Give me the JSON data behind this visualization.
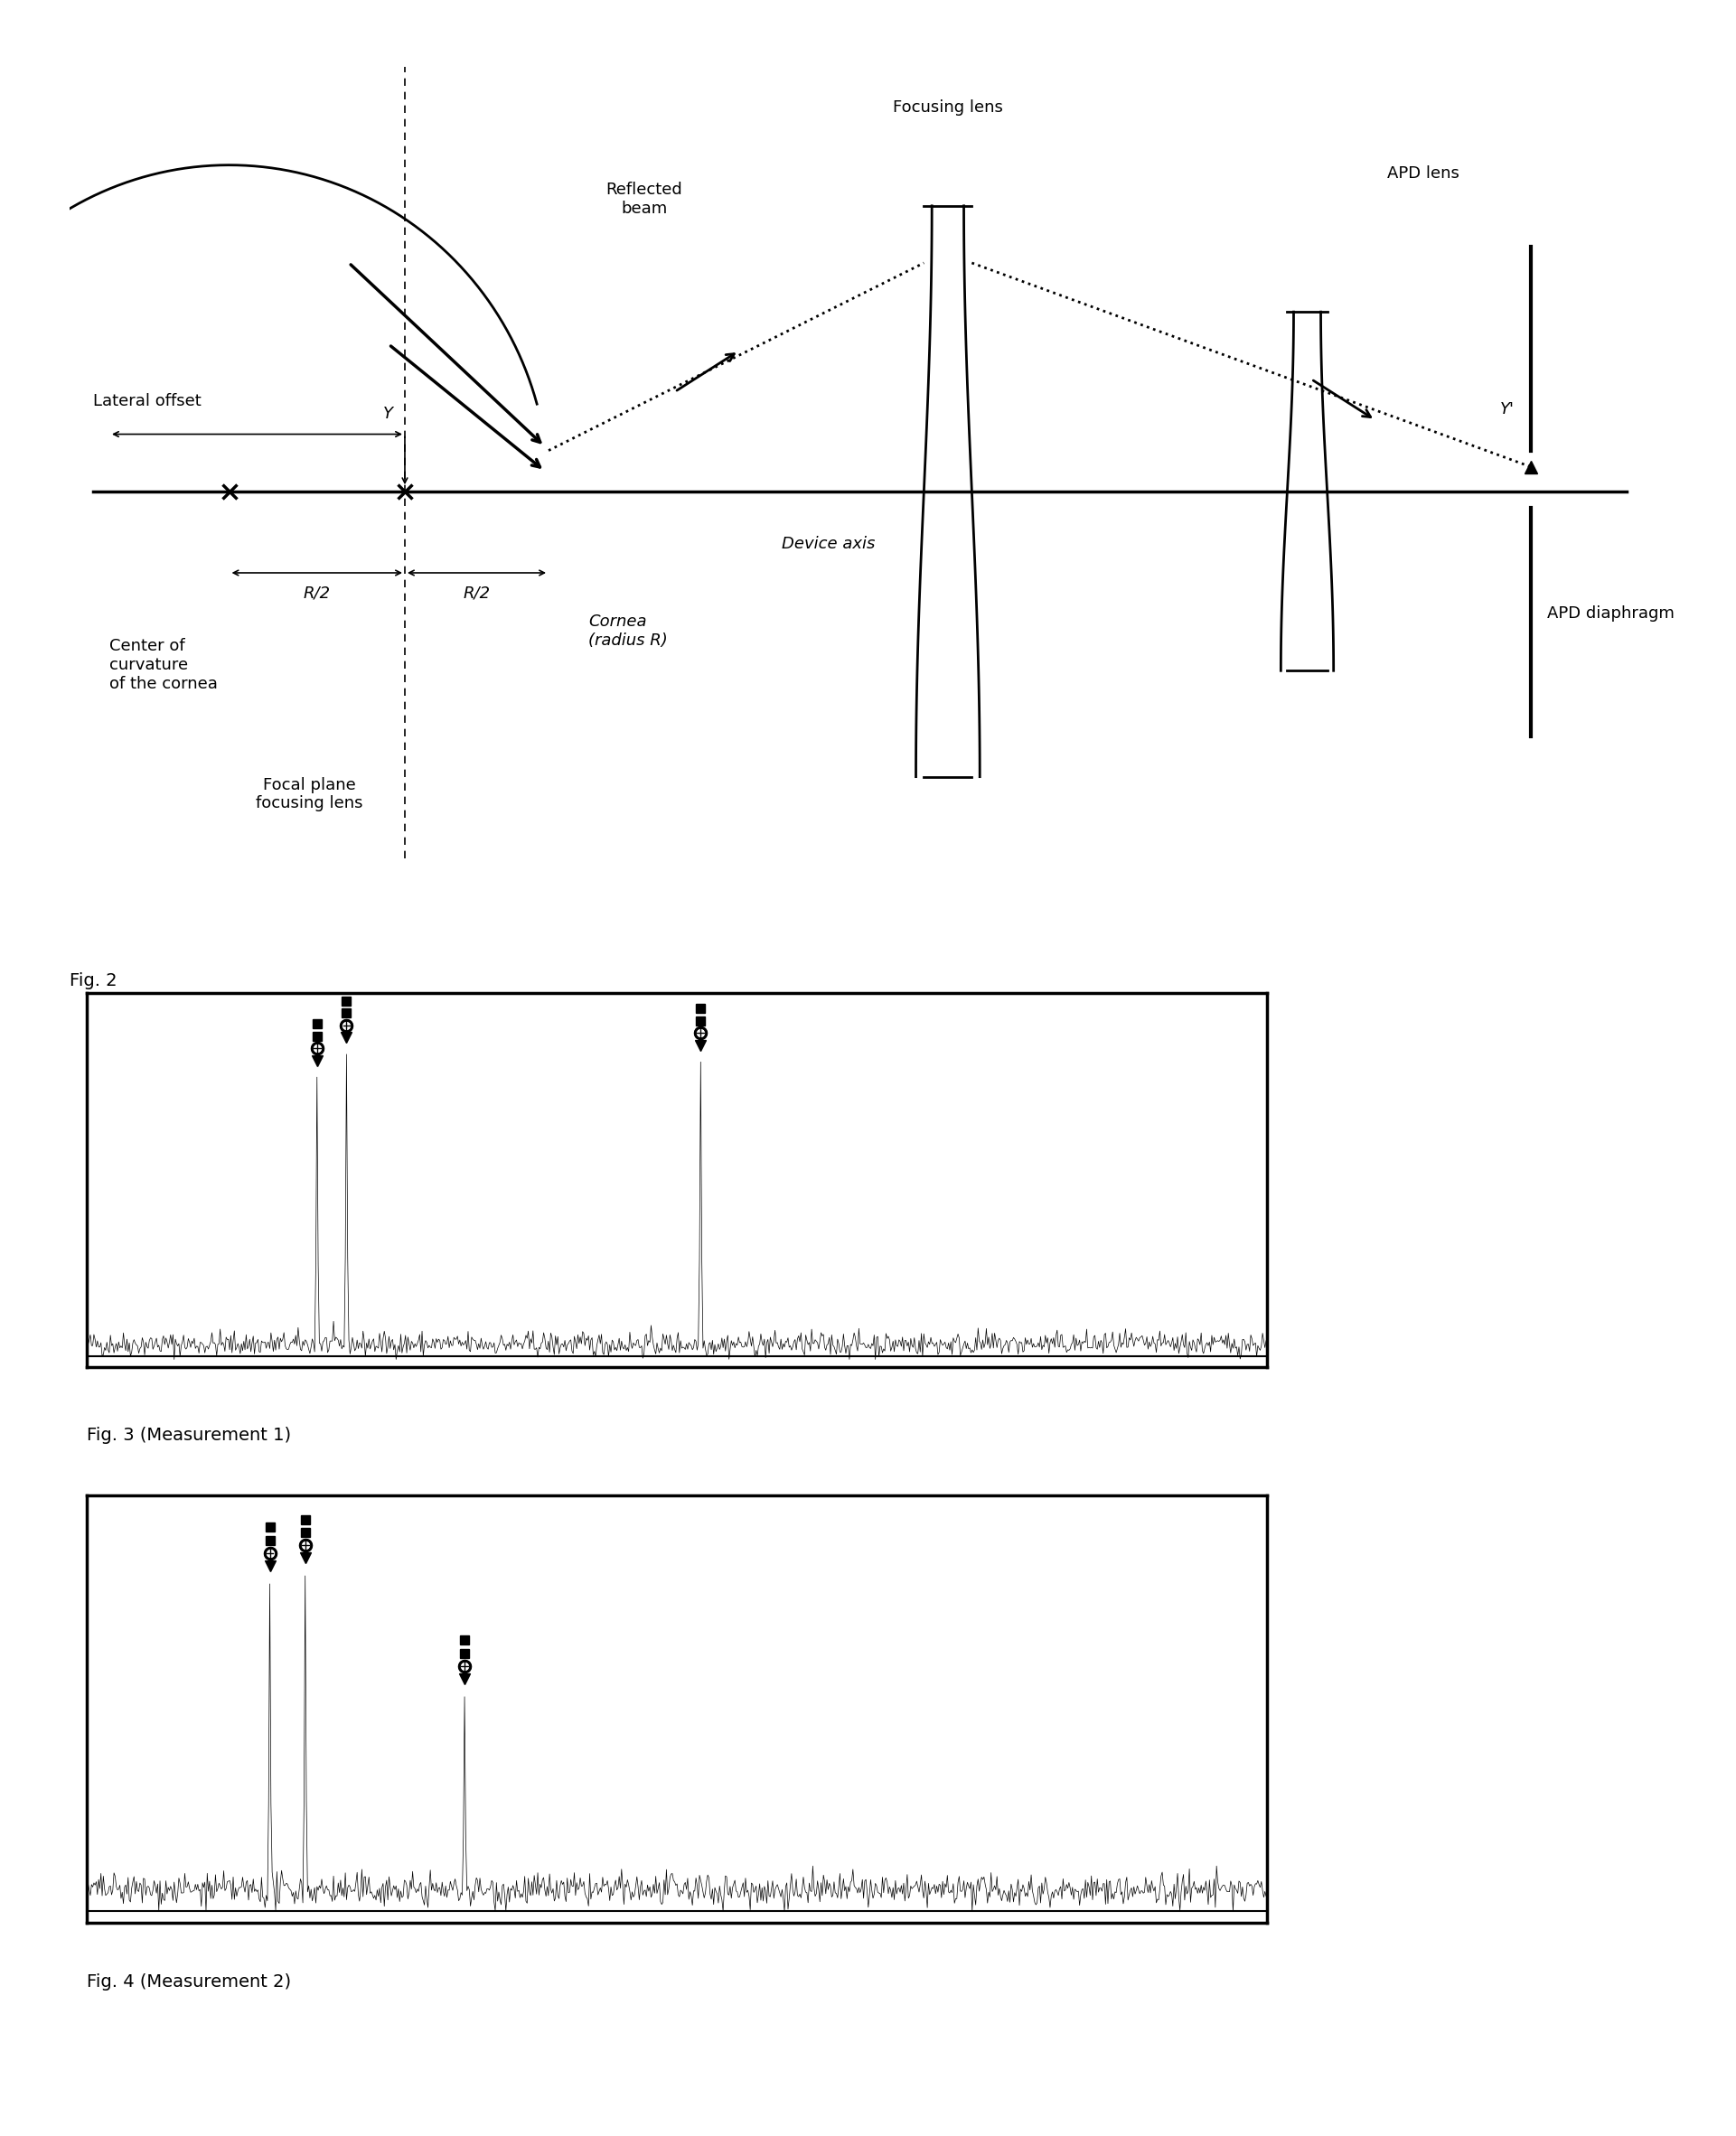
{
  "fig2_label": "Fig. 2",
  "fig3_label": "Fig. 3 (Measurement 1)",
  "fig4_label": "Fig. 4 (Measurement 2)",
  "bg_color": "#ffffff",
  "text_color": "#000000",
  "font_size": 13,
  "label_font_size": 14,
  "fig2_ylim": [
    -5.5,
    5.5
  ],
  "fig2_xlim": [
    0,
    20
  ]
}
